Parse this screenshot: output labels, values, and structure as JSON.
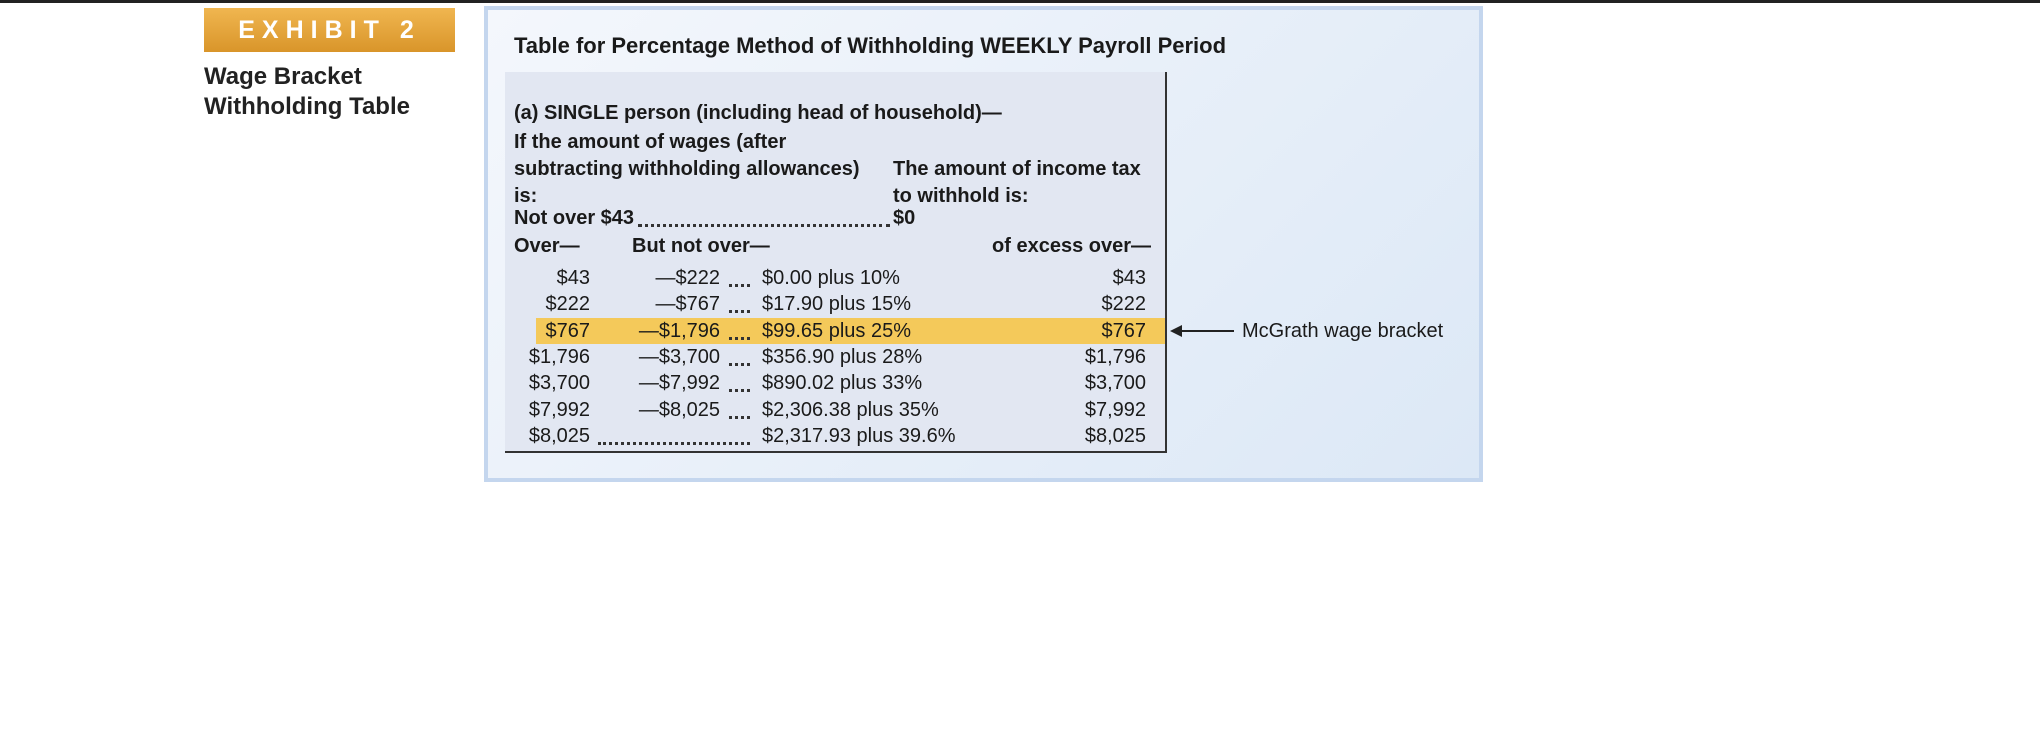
{
  "exhibit": {
    "label": "EXHIBIT 2",
    "title_lines": [
      "Wage Bracket",
      "Withholding Table"
    ]
  },
  "table": {
    "title": "Table for Percentage Method of Withholding WEEKLY Payroll Period",
    "section": "(a) SINGLE person (including head of household)—",
    "left_header_lines": [
      "If the amount of wages (after",
      "subtracting withholding allowances)",
      "is:"
    ],
    "right_header_lines": [
      "The amount of income tax",
      "to withhold is:"
    ],
    "first_row": {
      "label": "Not over $43",
      "tax": "$0"
    },
    "columns": [
      "Over—",
      "But not over—",
      "of excess over—"
    ],
    "rows": [
      [
        "$43",
        "—$222",
        "$0.00 plus 10%",
        "$43"
      ],
      [
        "$222",
        "—$767",
        "$17.90 plus 15%",
        "$222"
      ],
      [
        "$767",
        "—$1,796",
        "$99.65 plus 25%",
        "$767"
      ],
      [
        "$1,796",
        "—$3,700",
        "$356.90 plus 28%",
        "$1,796"
      ],
      [
        "$3,700",
        "—$7,992",
        "$890.02 plus 33%",
        "$3,700"
      ],
      [
        "$7,992",
        "—$8,025",
        "$2,306.38 plus 35%",
        "$7,992"
      ],
      [
        "$8,025",
        null,
        "$2,317.93 plus 39.6%",
        "$8,025"
      ]
    ],
    "highlight_row": 2,
    "annotation": "McGrath wage bracket"
  }
}
